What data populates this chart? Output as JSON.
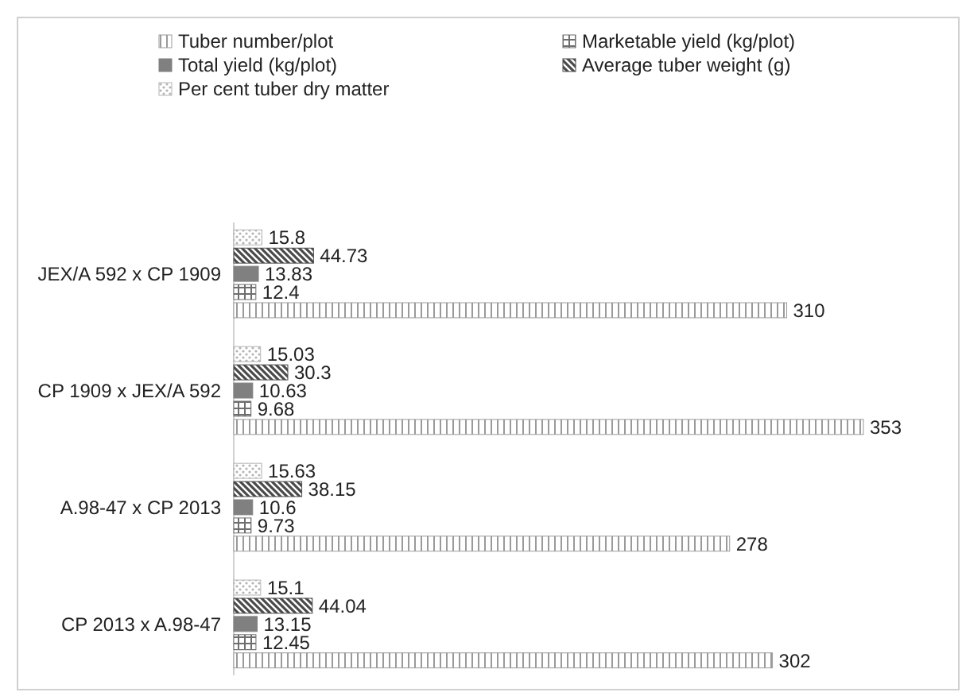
{
  "chart_data": {
    "type": "bar",
    "orientation": "horizontal",
    "categories": [
      "JEX/A 592 x CP 1909",
      "CP 1909 x JEX/A 592",
      "A.98-47 x CP 2013",
      "CP 2013 x A.98-47"
    ],
    "series": [
      {
        "name": "Tuber number/plot",
        "color": "#9a9a9a",
        "values": [
          310,
          353,
          278,
          302
        ]
      },
      {
        "name": "Marketable yield (kg/plot)",
        "color": "#6e6e6e",
        "values": [
          12.4,
          9.68,
          9.73,
          12.45
        ]
      },
      {
        "name": "Total yield (kg/plot)",
        "color": "#808080",
        "values": [
          13.83,
          10.63,
          10.6,
          13.15
        ]
      },
      {
        "name": "Average tuber weight (g)",
        "color": "#4a4a4a",
        "values": [
          44.73,
          30.3,
          38.15,
          44.04
        ]
      },
      {
        "name": "Per cent tuber dry matter",
        "color": "#b4b4b4",
        "values": [
          15.8,
          15.03,
          15.63,
          15.1
        ]
      }
    ],
    "data_labels": true,
    "legend": "top",
    "tick_labels": "y",
    "grid": false
  }
}
